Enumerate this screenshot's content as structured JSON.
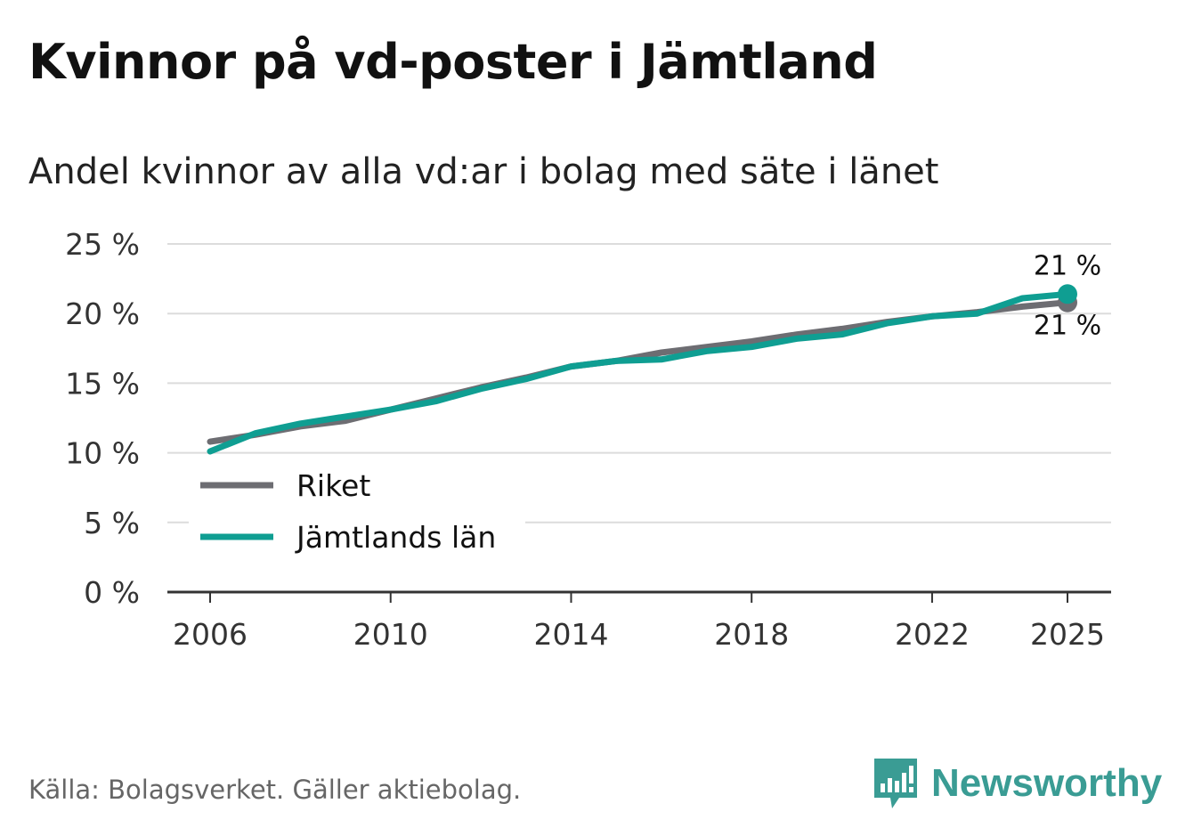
{
  "chart_data": {
    "type": "line",
    "title": "Kvinnor på vd-poster i Jämtland",
    "subtitle": "Andel kvinnor av alla vd:ar i bolag med säte i länet",
    "xlabel": "",
    "ylabel": "",
    "x": [
      2006,
      2007,
      2008,
      2009,
      2010,
      2011,
      2012,
      2013,
      2014,
      2015,
      2016,
      2017,
      2018,
      2019,
      2020,
      2021,
      2022,
      2023,
      2024,
      2025
    ],
    "xlim": [
      2006,
      2025
    ],
    "ylim": [
      0,
      25
    ],
    "x_ticks": [
      2006,
      2010,
      2014,
      2018,
      2022,
      2025
    ],
    "x_tick_labels": [
      "2006",
      "2010",
      "2014",
      "2018",
      "2022",
      "2025"
    ],
    "y_ticks": [
      0,
      5,
      10,
      15,
      20,
      25
    ],
    "y_tick_labels": [
      "0 %",
      "5 %",
      "10 %",
      "15 %",
      "20 %",
      "25 %"
    ],
    "grid": true,
    "legend_position": "bottom-left",
    "series": [
      {
        "name": "Riket",
        "color": "#6d6d72",
        "values": [
          10.8,
          11.3,
          11.9,
          12.3,
          13.1,
          13.9,
          14.7,
          15.4,
          16.2,
          16.6,
          17.2,
          17.6,
          18.0,
          18.5,
          18.9,
          19.4,
          19.8,
          20.1,
          20.5,
          20.8
        ],
        "end_label": "21 %"
      },
      {
        "name": "Jämtlands län",
        "color": "#0f9e92",
        "values": [
          10.1,
          11.4,
          12.1,
          12.6,
          13.1,
          13.7,
          14.6,
          15.3,
          16.2,
          16.6,
          16.7,
          17.3,
          17.6,
          18.2,
          18.5,
          19.3,
          19.8,
          20.0,
          21.1,
          21.4
        ],
        "end_label": "21 %"
      }
    ]
  },
  "source": "Källa: Bolagsverket. Gäller aktiebolag.",
  "logo": {
    "name": "Newsworthy",
    "color": "#3a9c94"
  }
}
